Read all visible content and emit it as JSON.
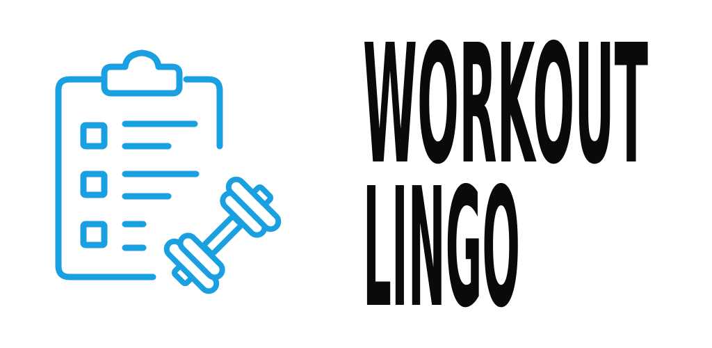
{
  "logo": {
    "icon": "clipboard-dumbbell-icon",
    "accent_color": "#1a9fe0",
    "text_color": "#0a0a0a"
  },
  "wordmark": {
    "line1": "WORKOUT",
    "line2": "LINGO"
  }
}
